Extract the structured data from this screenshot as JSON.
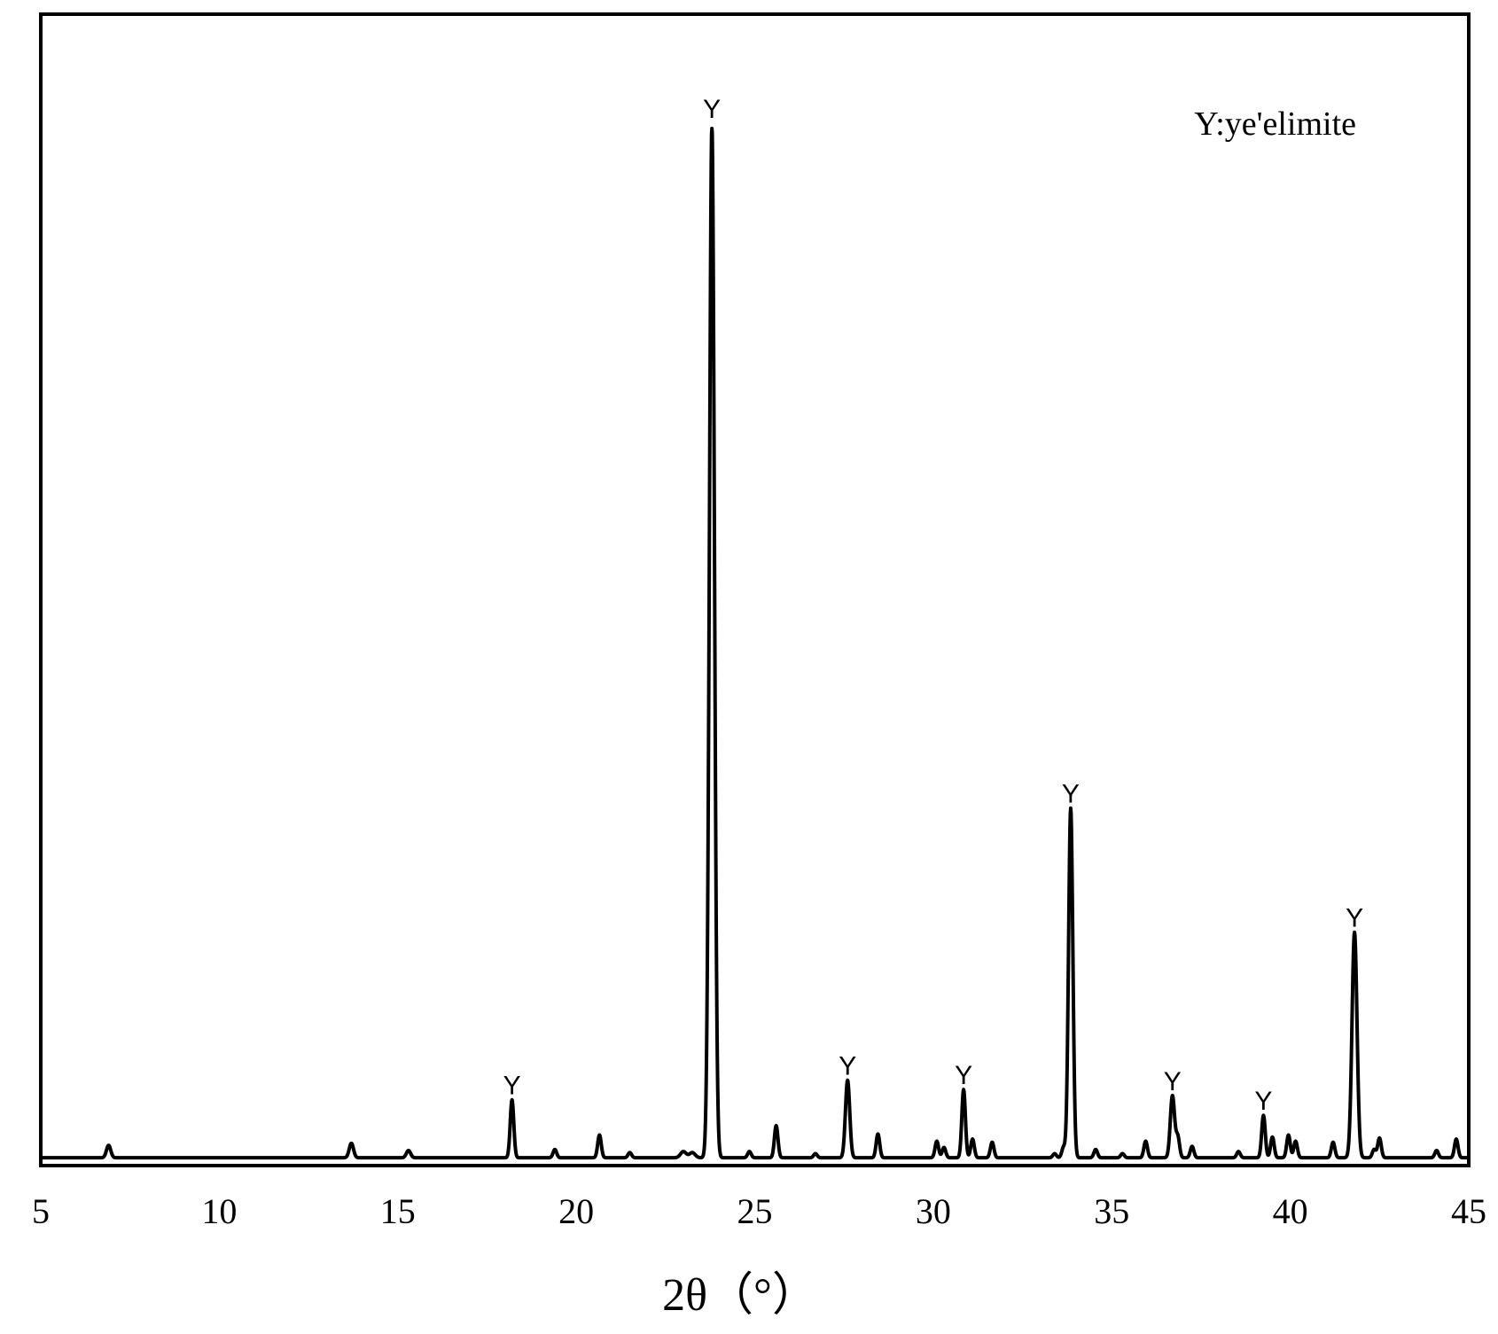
{
  "chart_data": {
    "type": "line",
    "title": "",
    "xlabel": "2θ（°）",
    "ylabel": "",
    "xlim": [
      5,
      45
    ],
    "ylim": [
      0,
      100
    ],
    "x_ticks": [
      5,
      10,
      15,
      20,
      25,
      30,
      35,
      40,
      45
    ],
    "y_ticks_shown": false,
    "grid": false,
    "legend": {
      "text": "Y:ye'elimite",
      "placement": "top-right"
    },
    "series_color": "#000000",
    "baseline": 0.5,
    "peaks": [
      {
        "x": 6.9,
        "y": 1.2,
        "w": 0.06
      },
      {
        "x": 13.7,
        "y": 1.4,
        "w": 0.06
      },
      {
        "x": 15.3,
        "y": 0.7,
        "w": 0.06
      },
      {
        "x": 18.2,
        "y": 5.6,
        "w": 0.05,
        "label": "Y"
      },
      {
        "x": 19.4,
        "y": 0.8,
        "w": 0.05
      },
      {
        "x": 20.65,
        "y": 2.2,
        "w": 0.05
      },
      {
        "x": 21.5,
        "y": 0.5,
        "w": 0.05
      },
      {
        "x": 23.0,
        "y": 0.6,
        "w": 0.08
      },
      {
        "x": 23.25,
        "y": 0.5,
        "w": 0.08
      },
      {
        "x": 23.8,
        "y": 100,
        "w": 0.07,
        "label": "Y"
      },
      {
        "x": 24.85,
        "y": 0.6,
        "w": 0.05
      },
      {
        "x": 25.6,
        "y": 3.1,
        "w": 0.05
      },
      {
        "x": 26.7,
        "y": 0.4,
        "w": 0.05
      },
      {
        "x": 27.6,
        "y": 7.5,
        "w": 0.06,
        "label": "Y"
      },
      {
        "x": 28.45,
        "y": 2.3,
        "w": 0.05
      },
      {
        "x": 30.1,
        "y": 1.6,
        "w": 0.05
      },
      {
        "x": 30.3,
        "y": 1.0,
        "w": 0.05
      },
      {
        "x": 30.85,
        "y": 6.6,
        "w": 0.05,
        "label": "Y"
      },
      {
        "x": 31.1,
        "y": 1.8,
        "w": 0.05
      },
      {
        "x": 31.65,
        "y": 1.5,
        "w": 0.05
      },
      {
        "x": 33.4,
        "y": 0.4,
        "w": 0.05
      },
      {
        "x": 33.65,
        "y": 1.0,
        "w": 0.05
      },
      {
        "x": 33.85,
        "y": 33.8,
        "w": 0.06,
        "label": "Y"
      },
      {
        "x": 34.55,
        "y": 0.8,
        "w": 0.05
      },
      {
        "x": 35.3,
        "y": 0.4,
        "w": 0.05
      },
      {
        "x": 35.95,
        "y": 1.6,
        "w": 0.05
      },
      {
        "x": 36.7,
        "y": 6.0,
        "w": 0.06,
        "label": "Y"
      },
      {
        "x": 36.85,
        "y": 2.0,
        "w": 0.05
      },
      {
        "x": 37.25,
        "y": 1.1,
        "w": 0.05
      },
      {
        "x": 38.55,
        "y": 0.6,
        "w": 0.05
      },
      {
        "x": 39.25,
        "y": 4.1,
        "w": 0.05,
        "label": "Y"
      },
      {
        "x": 39.5,
        "y": 2.0,
        "w": 0.05
      },
      {
        "x": 39.95,
        "y": 2.2,
        "w": 0.05
      },
      {
        "x": 40.15,
        "y": 1.6,
        "w": 0.05
      },
      {
        "x": 41.2,
        "y": 1.5,
        "w": 0.05
      },
      {
        "x": 41.8,
        "y": 21.8,
        "w": 0.07,
        "label": "Y"
      },
      {
        "x": 42.5,
        "y": 1.9,
        "w": 0.05
      },
      {
        "x": 42.35,
        "y": 0.8,
        "w": 0.05
      },
      {
        "x": 44.1,
        "y": 0.7,
        "w": 0.05
      },
      {
        "x": 44.65,
        "y": 1.8,
        "w": 0.05
      }
    ]
  }
}
